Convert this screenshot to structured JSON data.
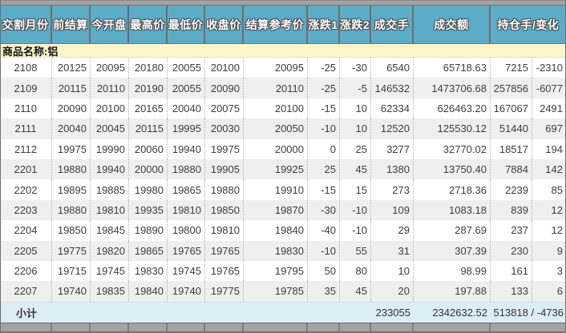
{
  "table": {
    "columns": [
      "交割月份",
      "前结算",
      "今开盘",
      "最高价",
      "最低价",
      "收盘价",
      "结算参考价",
      "涨跌1",
      "涨跌2",
      "成交手",
      "成交额",
      "持仓手/变化"
    ],
    "product_label": "商品名称:铝",
    "rows": [
      [
        "2108",
        "20125",
        "20095",
        "20180",
        "20055",
        "20100",
        "20095",
        "-25",
        "-30",
        "6540",
        "65718.63",
        "7215",
        "-2310"
      ],
      [
        "2109",
        "20115",
        "20110",
        "20190",
        "20055",
        "20090",
        "20110",
        "-25",
        "-5",
        "146532",
        "1473706.68",
        "257856",
        "-6077"
      ],
      [
        "2110",
        "20090",
        "20100",
        "20165",
        "20040",
        "20075",
        "20100",
        "-15",
        "10",
        "62334",
        "626463.20",
        "167067",
        "2491"
      ],
      [
        "2111",
        "20040",
        "20045",
        "20115",
        "19995",
        "20030",
        "20050",
        "-10",
        "10",
        "12520",
        "125530.12",
        "51440",
        "697"
      ],
      [
        "2112",
        "19975",
        "19990",
        "20060",
        "19940",
        "19975",
        "20000",
        "0",
        "25",
        "3277",
        "32770.02",
        "18517",
        "194"
      ],
      [
        "2201",
        "19880",
        "19940",
        "20000",
        "19880",
        "19905",
        "19925",
        "25",
        "45",
        "1380",
        "13750.40",
        "7884",
        "142"
      ],
      [
        "2202",
        "19895",
        "19885",
        "19980",
        "19865",
        "19880",
        "19910",
        "-15",
        "15",
        "273",
        "2718.36",
        "2239",
        "85"
      ],
      [
        "2203",
        "19880",
        "19810",
        "19935",
        "19810",
        "19850",
        "19870",
        "-30",
        "-10",
        "109",
        "1083.18",
        "839",
        "12"
      ],
      [
        "2204",
        "19850",
        "19845",
        "19890",
        "19800",
        "19810",
        "19840",
        "-40",
        "-10",
        "29",
        "287.69",
        "237",
        "12"
      ],
      [
        "2205",
        "19775",
        "19820",
        "19865",
        "19765",
        "19765",
        "19830",
        "-10",
        "55",
        "31",
        "307.39",
        "230",
        "9"
      ],
      [
        "2206",
        "19715",
        "19745",
        "19830",
        "19745",
        "19765",
        "19795",
        "50",
        "80",
        "10",
        "98.99",
        "161",
        "3"
      ],
      [
        "2207",
        "19740",
        "19835",
        "19840",
        "19740",
        "19775",
        "19785",
        "35",
        "45",
        "20",
        "197.88",
        "133",
        "6"
      ]
    ],
    "subtotal": {
      "label": "小计",
      "volume": "233055",
      "turnover": "2342632.52",
      "oi_change": "513818 / -4736"
    }
  },
  "colors": {
    "header_bg": "#5bacc7",
    "header_text": "#ffffff",
    "header_text_outline": "#4a4a4a",
    "product_row_bg": "#fdf6cd",
    "row_bg": "#ffffff",
    "row_alt_bg": "#efefef",
    "subtotal_bg": "#ddedf6",
    "data_text": "#3d3d3d",
    "strip_bg": "#a3a3a3",
    "border": "#6f6f6f"
  }
}
